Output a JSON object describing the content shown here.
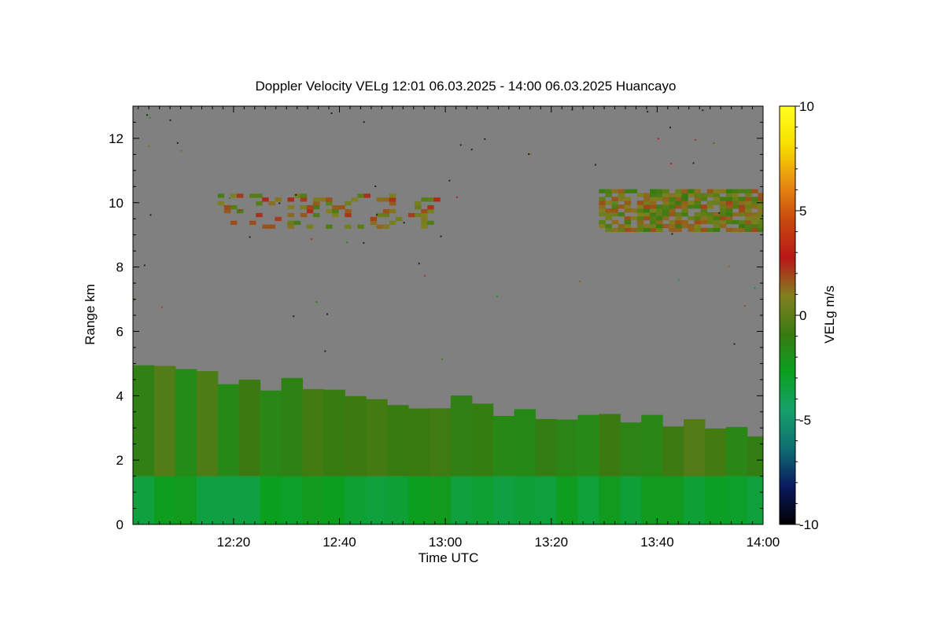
{
  "chart_data": {
    "type": "heatmap",
    "title": "Doppler Velocity VELg   12:01 06.03.2025 - 14:00 06.03.2025 Huancayo",
    "xlabel": "Time UTC",
    "ylabel": "Range km",
    "x_range": [
      "12:01",
      "14:00"
    ],
    "x_ticks": [
      "12:20",
      "12:40",
      "13:00",
      "13:20",
      "13:40",
      "14:00"
    ],
    "y_range": [
      0,
      13
    ],
    "y_ticks": [
      0,
      2,
      4,
      6,
      8,
      10,
      12
    ],
    "colorbar": {
      "label": "VELg m/s",
      "range": [
        -10,
        10
      ],
      "ticks": [
        10,
        5,
        0,
        -5,
        -10
      ],
      "colors": [
        "#000000",
        "#0a1a60",
        "#0f6e72",
        "#16a06a",
        "#0aa020",
        "#387a10",
        "#808020",
        "#b81818",
        "#c84810",
        "#e89010",
        "#f8e000",
        "#ffff20"
      ]
    },
    "no_data_color": "#808080",
    "features": [
      {
        "name": "near-surface layer",
        "time_start": "12:01",
        "time_end": "14:00",
        "range_km": [
          0,
          1.5
        ],
        "velocity_ms": -3
      },
      {
        "name": "boundary layer",
        "time_start": "12:01",
        "time_end": "14:00",
        "range_km": [
          1.5,
          4.7
        ],
        "top_km_start": 4.7,
        "top_km_end": 2.8,
        "velocity_ms": -1
      },
      {
        "name": "upper echo (first half)",
        "time_start": "12:17",
        "time_end": "12:58",
        "range_km": [
          9.2,
          10.2
        ],
        "velocity_ms": 1
      },
      {
        "name": "upper echo (second half)",
        "time_start": "13:29",
        "time_end": "14:00",
        "range_km": [
          9.1,
          10.3
        ],
        "velocity_ms": 0.5
      }
    ]
  }
}
